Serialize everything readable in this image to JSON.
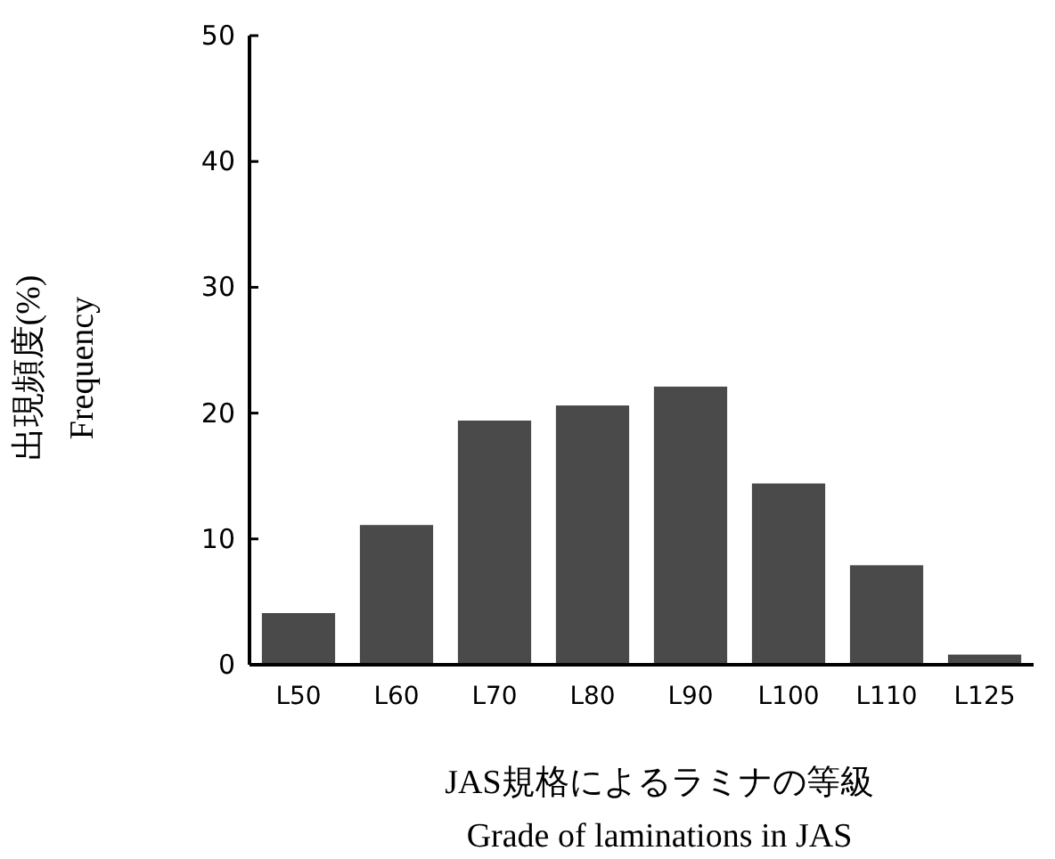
{
  "chart_data": {
    "type": "bar",
    "categories": [
      "L50",
      "L60",
      "L70",
      "L80",
      "L90",
      "L100",
      "L110",
      "L125"
    ],
    "values": [
      4.0,
      11.0,
      19.3,
      20.5,
      22.0,
      14.3,
      7.8,
      0.7
    ],
    "color": "#4a4a4a",
    "ylim": [
      0,
      50
    ],
    "yticks": [
      0,
      10,
      20,
      30,
      40,
      50
    ],
    "xlabel": "JAS規格によるラミナの等級\nGrade of laminations in JAS",
    "ylabel": "出現頻度(%)\nFrequency"
  }
}
